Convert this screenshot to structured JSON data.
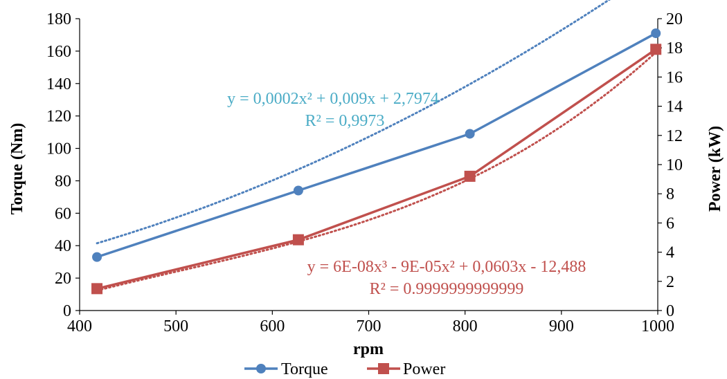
{
  "chart_data": {
    "type": "line",
    "x": [
      418,
      627,
      805,
      998
    ],
    "xlabel": "rpm",
    "xlim": [
      400,
      1000
    ],
    "xticks": [
      400,
      500,
      600,
      700,
      800,
      900,
      1000
    ],
    "ylabel_left": "Torque (Nm)",
    "ylim_left": [
      0,
      180
    ],
    "yticks_left": [
      0,
      20,
      40,
      60,
      80,
      100,
      120,
      140,
      160,
      180
    ],
    "ylabel_right": "Power (kW)",
    "ylim_right": [
      0,
      20
    ],
    "yticks_right": [
      0,
      2,
      4,
      6,
      8,
      10,
      12,
      14,
      16,
      18,
      20
    ],
    "grid": false,
    "legend_position": "bottom",
    "series": [
      {
        "name": "Torque",
        "axis": "left",
        "values": [
          33,
          74,
          109,
          171
        ],
        "color": "#4F81BD",
        "marker": "circle",
        "trendline": {
          "kind": "polynomial-2",
          "coefficients": [
            0.0002,
            0.009,
            2.7974
          ],
          "equation": "y = 0,0002x² + 0,009x + 2,7974",
          "r2": "R² = 0,9973",
          "label_color": "#4BACC6"
        }
      },
      {
        "name": "Power",
        "axis": "right",
        "values": [
          1.5,
          4.85,
          9.2,
          17.9
        ],
        "color": "#C0504D",
        "marker": "square",
        "trendline": {
          "kind": "polynomial-3",
          "coefficients": [
            6e-08,
            -9e-05,
            0.0603,
            -12.488
          ],
          "equation": "y = 6E-08x³ - 9E-05x² + 0,0603x - 12,488",
          "r2": "R² = 0.9999999999999",
          "label_color": "#C0504D"
        }
      }
    ]
  }
}
